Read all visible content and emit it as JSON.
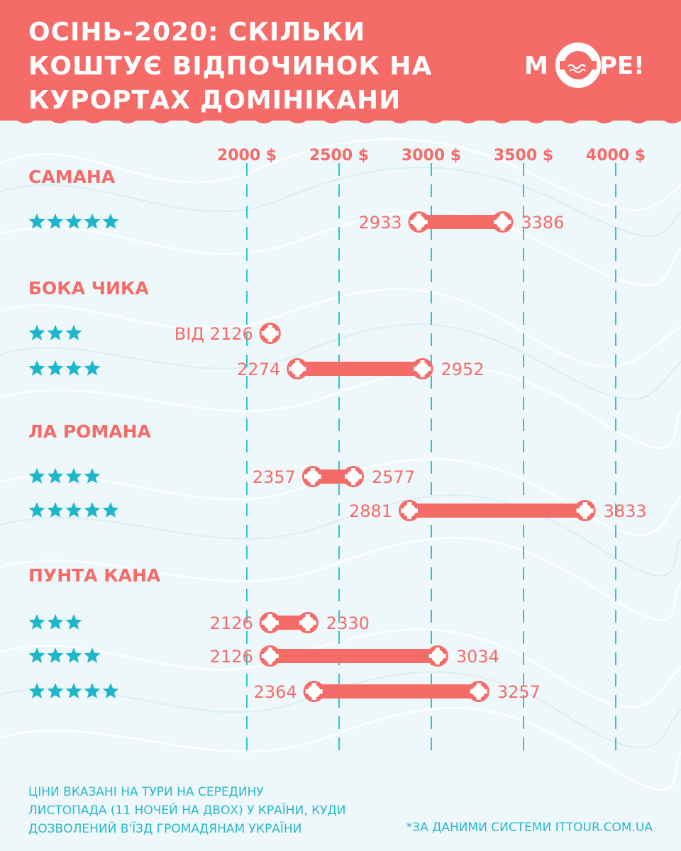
{
  "header": {
    "title_lines": [
      "ОСІНЬ-2020: СКІЛЬКИ",
      "КОШТУЄ ВІДПОЧИНОК НА",
      "КУРОРТАХ ДОМІНІКАНИ"
    ],
    "logo_text_left": "М",
    "logo_text_right": "РЕ!"
  },
  "colors": {
    "accent": "#f46b68",
    "stars": "#1fb6cb",
    "gridline": "#2ec4d3",
    "background": "#eef8fa"
  },
  "chart_data": {
    "type": "range-bar",
    "title": "ОСІНЬ-2020: СКІЛЬКИ КОШТУЄ ВІДПОЧИНОК НА КУРОРТАХ ДОМІНІКАНИ",
    "x_ticks": [
      "2000 $",
      "2500 $",
      "3000 $",
      "3500 $",
      "4000 $"
    ],
    "x_tick_values": [
      2000,
      2500,
      3000,
      3500,
      4000
    ],
    "xlim": [
      2000,
      4000
    ],
    "grid": true,
    "groups": [
      {
        "name": "САМАНА",
        "rows": [
          {
            "stars": 5,
            "min": 2933,
            "max": 3386,
            "min_label": "2933",
            "max_label": "3386"
          }
        ]
      },
      {
        "name": "БОКА ЧИКА",
        "rows": [
          {
            "stars": 3,
            "min": 2126,
            "max": null,
            "min_label": "ВІД 2126",
            "max_label": ""
          },
          {
            "stars": 4,
            "min": 2274,
            "max": 2952,
            "min_label": "2274",
            "max_label": "2952"
          }
        ]
      },
      {
        "name": "ЛА РОМАНА",
        "rows": [
          {
            "stars": 4,
            "min": 2357,
            "max": 2577,
            "min_label": "2357",
            "max_label": "2577"
          },
          {
            "stars": 5,
            "min": 2881,
            "max": 3833,
            "min_label": "2881",
            "max_label": "3833"
          }
        ]
      },
      {
        "name": "ПУНТА КАНА",
        "rows": [
          {
            "stars": 3,
            "min": 2126,
            "max": 2330,
            "min_label": "2126",
            "max_label": "2330"
          },
          {
            "stars": 4,
            "min": 2126,
            "max": 3034,
            "min_label": "2126",
            "max_label": "3034"
          },
          {
            "stars": 5,
            "min": 2364,
            "max": 3257,
            "min_label": "2364",
            "max_label": "3257"
          }
        ]
      }
    ]
  },
  "footer": {
    "note_lines": [
      "ЦІНИ ВКАЗАНІ НА ТУРИ НА СЕРЕДИНУ",
      "ЛИСТОПАДА (11 НОЧЕЙ НА ДВОХ) У КРАЇНИ, КУДИ",
      "ДОЗВОЛЕНИЙ В'ЇЗД ГРОМАДЯНАМ УКРАЇНИ"
    ],
    "source": "*ЗА ДАНИМИ СИСТЕМИ ITTOUR.COM.UA"
  }
}
